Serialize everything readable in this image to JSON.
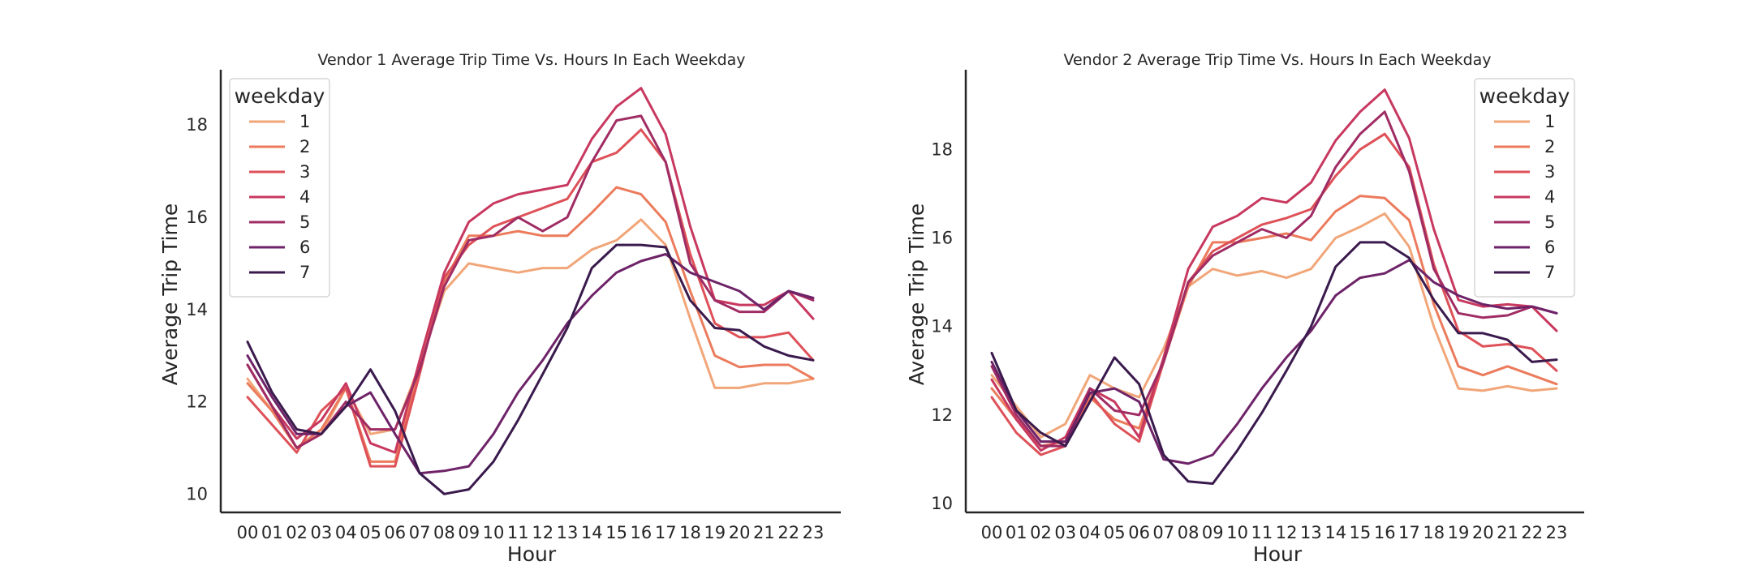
{
  "chart_data": [
    {
      "type": "line",
      "title": "Vendor 1 Average Trip Time Vs. Hours In Each Weekday",
      "xlabel": "Hour",
      "ylabel": "Average Trip Time",
      "x": [
        "00",
        "01",
        "02",
        "03",
        "04",
        "05",
        "06",
        "07",
        "08",
        "09",
        "10",
        "11",
        "12",
        "13",
        "14",
        "15",
        "16",
        "17",
        "18",
        "19",
        "20",
        "21",
        "22",
        "23"
      ],
      "yticks": [
        10,
        12,
        14,
        16,
        18
      ],
      "ylim": [
        9.6,
        19.2
      ],
      "grid": false,
      "legend": {
        "title": "weekday",
        "position": "top-left"
      },
      "series": [
        {
          "name": "1",
          "color": "#f1a679",
          "values": [
            12.5,
            11.8,
            11.0,
            11.3,
            12.3,
            11.3,
            11.4,
            12.8,
            14.4,
            15.0,
            14.9,
            14.8,
            14.9,
            14.9,
            15.3,
            15.5,
            15.95,
            15.4,
            13.8,
            12.3,
            12.3,
            12.4,
            12.4,
            12.5
          ]
        },
        {
          "name": "2",
          "color": "#eb7b5c",
          "values": [
            12.4,
            11.8,
            11.0,
            11.4,
            12.3,
            10.7,
            10.7,
            12.8,
            14.6,
            15.6,
            15.6,
            15.7,
            15.6,
            15.6,
            16.1,
            16.65,
            16.5,
            15.9,
            14.4,
            13.0,
            12.75,
            12.8,
            12.8,
            12.5
          ]
        },
        {
          "name": "3",
          "color": "#de5158",
          "values": [
            12.1,
            11.5,
            10.9,
            11.8,
            12.3,
            10.6,
            10.6,
            12.6,
            14.7,
            15.4,
            15.8,
            16.0,
            16.2,
            16.4,
            17.2,
            17.4,
            17.9,
            17.2,
            15.2,
            13.7,
            13.4,
            13.4,
            13.5,
            12.9
          ]
        },
        {
          "name": "4",
          "color": "#c8385f",
          "values": [
            12.8,
            11.9,
            11.2,
            11.6,
            12.4,
            11.1,
            10.9,
            12.9,
            14.8,
            15.9,
            16.3,
            16.5,
            16.6,
            16.7,
            17.7,
            18.4,
            18.8,
            17.8,
            15.8,
            14.2,
            14.1,
            14.1,
            14.4,
            13.8
          ]
        },
        {
          "name": "5",
          "color": "#a02c64",
          "values": [
            12.8,
            11.9,
            11.0,
            11.3,
            12.0,
            11.4,
            11.4,
            12.7,
            14.5,
            15.5,
            15.6,
            16.0,
            15.7,
            16.0,
            17.2,
            18.1,
            18.2,
            17.2,
            15.0,
            14.2,
            13.95,
            13.95,
            14.4,
            14.2
          ]
        },
        {
          "name": "6",
          "color": "#6e2368",
          "values": [
            13.0,
            12.1,
            11.3,
            11.3,
            11.9,
            12.2,
            11.3,
            10.45,
            10.5,
            10.6,
            11.3,
            12.2,
            12.9,
            13.7,
            14.3,
            14.8,
            15.05,
            15.2,
            14.8,
            14.6,
            14.4,
            14.0,
            14.4,
            14.25
          ]
        },
        {
          "name": "7",
          "color": "#3a1a4d",
          "values": [
            13.3,
            12.2,
            11.4,
            11.3,
            11.9,
            12.7,
            11.8,
            10.45,
            10.0,
            10.1,
            10.7,
            11.6,
            12.6,
            13.6,
            14.9,
            15.4,
            15.4,
            15.35,
            14.2,
            13.6,
            13.55,
            13.2,
            13.0,
            12.9
          ]
        }
      ]
    },
    {
      "type": "line",
      "title": "Vendor 2 Average Trip Time Vs. Hours In Each Weekday",
      "xlabel": "Hour",
      "ylabel": "Average Trip Time",
      "x": [
        "00",
        "01",
        "02",
        "03",
        "04",
        "05",
        "06",
        "07",
        "08",
        "09",
        "10",
        "11",
        "12",
        "13",
        "14",
        "15",
        "16",
        "17",
        "18",
        "19",
        "20",
        "21",
        "22",
        "23"
      ],
      "yticks": [
        10,
        12,
        14,
        16,
        18
      ],
      "ylim": [
        9.8,
        19.8
      ],
      "grid": false,
      "legend": {
        "title": "weekday",
        "position": "top-right"
      },
      "series": [
        {
          "name": "1",
          "color": "#f1a679",
          "values": [
            12.9,
            12.2,
            11.5,
            11.8,
            12.9,
            12.6,
            12.4,
            13.5,
            14.9,
            15.3,
            15.15,
            15.25,
            15.1,
            15.3,
            16.0,
            16.25,
            16.55,
            15.8,
            14.0,
            12.6,
            12.55,
            12.65,
            12.55,
            12.6
          ]
        },
        {
          "name": "2",
          "color": "#eb7b5c",
          "values": [
            12.6,
            11.9,
            11.3,
            11.4,
            12.4,
            11.9,
            11.7,
            13.2,
            14.9,
            15.9,
            15.9,
            16.0,
            16.1,
            15.95,
            16.6,
            16.95,
            16.9,
            16.4,
            14.5,
            13.1,
            12.9,
            13.1,
            12.9,
            12.7
          ]
        },
        {
          "name": "3",
          "color": "#de5158",
          "values": [
            12.4,
            11.6,
            11.1,
            11.3,
            12.5,
            11.8,
            11.4,
            13.2,
            15.0,
            15.7,
            16.0,
            16.3,
            16.45,
            16.65,
            17.4,
            18.0,
            18.35,
            17.6,
            15.4,
            13.9,
            13.55,
            13.6,
            13.5,
            13.0
          ]
        },
        {
          "name": "4",
          "color": "#c8385f",
          "values": [
            12.8,
            11.9,
            11.2,
            11.5,
            12.6,
            12.3,
            11.5,
            13.3,
            15.3,
            16.25,
            16.5,
            16.9,
            16.8,
            17.25,
            18.2,
            18.85,
            19.35,
            18.25,
            16.2,
            14.6,
            14.45,
            14.5,
            14.45,
            13.9
          ]
        },
        {
          "name": "5",
          "color": "#a02c64",
          "values": [
            13.1,
            12.0,
            11.3,
            11.3,
            12.6,
            12.1,
            12.0,
            13.2,
            15.0,
            15.6,
            15.9,
            16.2,
            16.0,
            16.5,
            17.6,
            18.35,
            18.85,
            17.5,
            15.3,
            14.3,
            14.2,
            14.25,
            14.45,
            14.3
          ]
        },
        {
          "name": "6",
          "color": "#6e2368",
          "values": [
            13.2,
            12.1,
            11.4,
            11.4,
            12.5,
            12.6,
            12.3,
            11.0,
            10.9,
            11.1,
            11.8,
            12.6,
            13.3,
            13.9,
            14.7,
            15.1,
            15.2,
            15.5,
            15.0,
            14.7,
            14.5,
            14.4,
            14.45,
            14.3
          ]
        },
        {
          "name": "7",
          "color": "#3a1a4d",
          "values": [
            13.4,
            12.1,
            11.6,
            11.3,
            12.3,
            13.3,
            12.7,
            11.1,
            10.5,
            10.45,
            11.2,
            12.05,
            13.0,
            14.0,
            15.35,
            15.9,
            15.9,
            15.55,
            14.6,
            13.85,
            13.85,
            13.7,
            13.2,
            13.25
          ]
        }
      ]
    }
  ]
}
